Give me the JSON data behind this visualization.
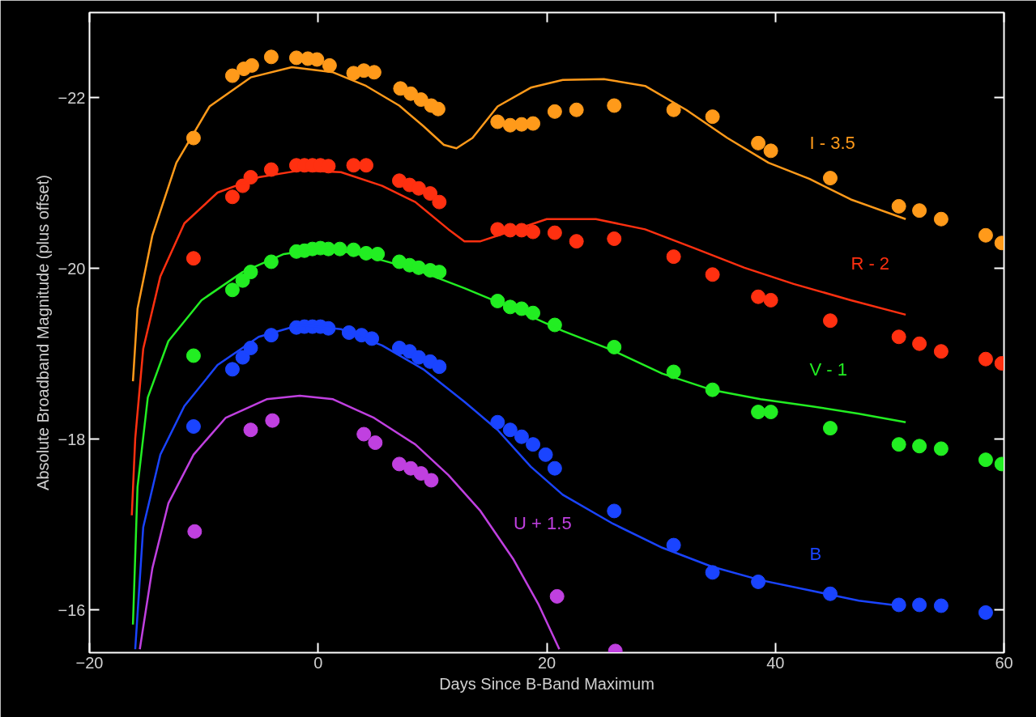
{
  "chart_data": {
    "type": "scatter",
    "xlabel": "Days Since B-Band Maximum",
    "ylabel": "Absolute Broadband Magnitude (plus offset)",
    "xlim": [
      -20,
      60
    ],
    "ylim": [
      -15.5,
      -23.0
    ],
    "xticks": [
      -20,
      0,
      20,
      40,
      60
    ],
    "yticks": [
      -22,
      -20,
      -18,
      -16
    ],
    "grid": false,
    "marker": "circle",
    "line_style": "solid",
    "series": [
      {
        "color": "#ff9a1a",
        "x": [
          -10.9,
          -7.5,
          -6.5,
          -5.8,
          -4.1,
          -1.9,
          -0.9,
          -0.1,
          1.0,
          3.1,
          4.0,
          4.9,
          7.2,
          8.1,
          9.0,
          9.9,
          10.5,
          15.7,
          16.8,
          17.8,
          18.8,
          20.7,
          22.6,
          25.9,
          31.1,
          34.5,
          38.5,
          39.6,
          44.8,
          50.8,
          52.6,
          54.5,
          58.4,
          59.8
        ],
        "values": [
          -21.53,
          -22.26,
          -22.34,
          -22.38,
          -22.48,
          -22.47,
          -22.46,
          -22.45,
          -22.38,
          -22.29,
          -22.32,
          -22.3,
          -22.11,
          -22.05,
          -21.98,
          -21.91,
          -21.87,
          -21.72,
          -21.68,
          -21.69,
          -21.7,
          -21.84,
          -21.86,
          -21.91,
          -21.86,
          -21.78,
          -21.47,
          -21.38,
          -21.06,
          -20.73,
          -20.68,
          -20.58,
          -20.39,
          -20.3
        ]
      },
      {
        "type": "line",
        "marker": "none",
        "name": "I - 3.5",
        "color": "#ff9a1a",
        "x": [
          -16.2,
          -15.8,
          -14.5,
          -12.4,
          -9.5,
          -5.9,
          -2.3,
          1.3,
          4.2,
          7.1,
          9.2,
          11.0,
          12.1,
          13.5,
          15.7,
          18.6,
          21.4,
          25.0,
          28.6,
          32.2,
          35.8,
          39.4,
          43.0,
          46.6,
          51.4
        ],
        "values": [
          -18.68,
          -19.53,
          -20.39,
          -21.24,
          -21.9,
          -22.24,
          -22.36,
          -22.3,
          -22.14,
          -21.91,
          -21.67,
          -21.45,
          -21.41,
          -21.53,
          -21.9,
          -22.12,
          -22.21,
          -22.22,
          -22.14,
          -21.86,
          -21.53,
          -21.24,
          -21.05,
          -20.81,
          -20.58
        ]
      },
      {
        "color": "#ff3010",
        "x": [
          -10.9,
          -7.5,
          -6.6,
          -5.9,
          -4.1,
          -1.9,
          -1.2,
          -0.5,
          0.2,
          0.9,
          3.1,
          4.2,
          7.1,
          8.0,
          8.8,
          9.8,
          10.6,
          15.7,
          16.8,
          17.8,
          18.8,
          20.7,
          22.6,
          25.9,
          31.1,
          34.5,
          38.5,
          39.6,
          44.8,
          50.8,
          52.6,
          54.5,
          58.4,
          59.8
        ],
        "values": [
          -20.12,
          -20.84,
          -20.97,
          -21.07,
          -21.16,
          -21.21,
          -21.21,
          -21.21,
          -21.21,
          -21.2,
          -21.21,
          -21.21,
          -21.03,
          -20.98,
          -20.94,
          -20.88,
          -20.78,
          -20.46,
          -20.45,
          -20.45,
          -20.43,
          -20.42,
          -20.32,
          -20.35,
          -20.14,
          -19.93,
          -19.67,
          -19.63,
          -19.39,
          -19.2,
          -19.12,
          -19.03,
          -18.94,
          -18.89
        ]
      },
      {
        "type": "line",
        "marker": "none",
        "name": "R - 2",
        "color": "#ff3010",
        "x": [
          -16.3,
          -16.0,
          -15.3,
          -13.8,
          -11.7,
          -8.8,
          -5.2,
          -1.6,
          2.0,
          5.6,
          8.5,
          11.4,
          12.8,
          14.2,
          16.0,
          20.0,
          24.3,
          28.6,
          32.9,
          37.3,
          41.6,
          46.6,
          51.4
        ],
        "values": [
          -17.11,
          -18.01,
          -19.06,
          -19.91,
          -20.53,
          -20.89,
          -21.07,
          -21.15,
          -21.13,
          -20.97,
          -20.78,
          -20.46,
          -20.32,
          -20.32,
          -20.4,
          -20.58,
          -20.58,
          -20.46,
          -20.24,
          -20.01,
          -19.82,
          -19.63,
          -19.46
        ]
      },
      {
        "color": "#22ee22",
        "x": [
          -10.9,
          -7.5,
          -6.6,
          -5.9,
          -4.1,
          -1.9,
          -1.2,
          -0.5,
          0.2,
          0.9,
          1.9,
          3.1,
          4.2,
          5.2,
          7.1,
          8.0,
          8.8,
          9.8,
          10.6,
          15.7,
          16.8,
          17.8,
          18.8,
          20.7,
          25.9,
          31.1,
          34.5,
          38.5,
          39.6,
          44.8,
          50.8,
          52.6,
          54.5,
          58.4,
          59.8
        ],
        "values": [
          -18.98,
          -19.75,
          -19.86,
          -19.96,
          -20.08,
          -20.2,
          -20.21,
          -20.23,
          -20.24,
          -20.23,
          -20.23,
          -20.22,
          -20.18,
          -20.17,
          -20.08,
          -20.04,
          -20.01,
          -19.98,
          -19.96,
          -19.62,
          -19.55,
          -19.53,
          -19.48,
          -19.34,
          -19.08,
          -18.79,
          -18.58,
          -18.32,
          -18.32,
          -18.13,
          -17.94,
          -17.92,
          -17.89,
          -17.76,
          -17.71
        ]
      },
      {
        "type": "line",
        "marker": "none",
        "name": "V - 1",
        "color": "#22ee22",
        "x": [
          -16.2,
          -15.8,
          -14.9,
          -13.1,
          -10.2,
          -6.6,
          -3.0,
          0.6,
          4.2,
          8.5,
          12.8,
          17.1,
          21.4,
          25.8,
          30.1,
          34.4,
          38.7,
          43.0,
          47.3,
          51.4
        ],
        "values": [
          -15.83,
          -17.44,
          -18.49,
          -19.15,
          -19.63,
          -19.96,
          -20.17,
          -20.24,
          -20.15,
          -19.99,
          -19.77,
          -19.53,
          -19.27,
          -19.04,
          -18.77,
          -18.58,
          -18.47,
          -18.39,
          -18.3,
          -18.2
        ]
      },
      {
        "color": "#1a44ff",
        "x": [
          -10.9,
          -7.5,
          -6.6,
          -5.9,
          -4.1,
          -1.9,
          -1.2,
          -0.5,
          0.2,
          0.9,
          2.7,
          3.8,
          4.7,
          7.1,
          8.0,
          8.8,
          9.8,
          10.6,
          15.7,
          16.8,
          17.8,
          18.8,
          19.9,
          20.7,
          25.9,
          31.1,
          34.5,
          38.5,
          44.8,
          50.8,
          52.6,
          54.5,
          58.4
        ],
        "values": [
          -18.15,
          -18.82,
          -18.96,
          -19.07,
          -19.22,
          -19.31,
          -19.32,
          -19.32,
          -19.32,
          -19.3,
          -19.25,
          -19.22,
          -19.18,
          -19.07,
          -19.03,
          -18.96,
          -18.91,
          -18.85,
          -18.2,
          -18.11,
          -18.03,
          -17.94,
          -17.82,
          -17.66,
          -17.16,
          -16.76,
          -16.44,
          -16.33,
          -16.19,
          -16.06,
          -16.06,
          -16.05,
          -15.97
        ]
      },
      {
        "type": "line",
        "marker": "none",
        "name": "B",
        "color": "#1a44ff",
        "x": [
          -16.0,
          -15.3,
          -13.8,
          -11.7,
          -8.8,
          -5.2,
          -1.6,
          2.0,
          5.6,
          9.2,
          12.8,
          15.7,
          18.6,
          21.4,
          25.8,
          30.1,
          34.4,
          38.7,
          43.0,
          47.3,
          51.4
        ],
        "values": [
          -15.54,
          -16.97,
          -17.82,
          -18.39,
          -18.87,
          -19.2,
          -19.34,
          -19.29,
          -19.1,
          -18.82,
          -18.44,
          -18.11,
          -17.68,
          -17.35,
          -17.01,
          -16.73,
          -16.51,
          -16.35,
          -16.23,
          -16.11,
          -16.04
        ]
      },
      {
        "color": "#c040e0",
        "x": [
          -10.8,
          -5.9,
          -4.0,
          4.0,
          5.0,
          7.1,
          8.1,
          9.0,
          9.9,
          20.9,
          26.0
        ],
        "values": [
          -16.92,
          -18.11,
          -18.22,
          -18.06,
          -17.96,
          -17.71,
          -17.66,
          -17.6,
          -17.52,
          -16.16,
          -15.52
        ]
      },
      {
        "type": "line",
        "marker": "none",
        "name": "U + 1.5",
        "color": "#c040e0",
        "x": [
          -15.6,
          -14.5,
          -13.1,
          -10.9,
          -8.1,
          -4.5,
          -1.6,
          1.3,
          4.9,
          8.5,
          11.4,
          14.2,
          17.1,
          19.3,
          21.1
        ],
        "values": [
          -15.54,
          -16.49,
          -17.25,
          -17.82,
          -18.25,
          -18.47,
          -18.51,
          -18.47,
          -18.25,
          -17.94,
          -17.58,
          -17.16,
          -16.59,
          -16.06,
          -15.54
        ]
      }
    ]
  }
}
